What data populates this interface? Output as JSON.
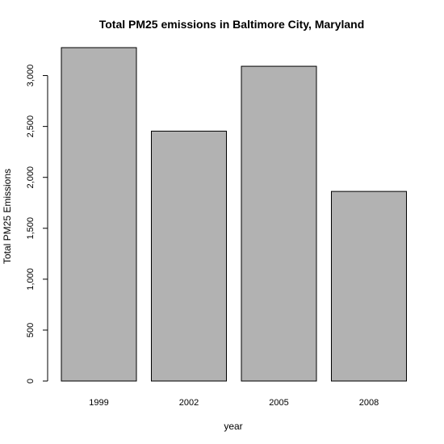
{
  "chart_data": {
    "type": "bar",
    "title": "Total PM25 emissions in Baltimore City, Maryland",
    "xlabel": "year",
    "ylabel": "Total PM25 Emissions",
    "categories": [
      "1999",
      "2002",
      "2005",
      "2008"
    ],
    "values": [
      3274,
      2454,
      3091,
      1862
    ],
    "ylim": [
      0,
      3300
    ],
    "yticks": [
      0,
      500,
      1000,
      1500,
      2000,
      2500,
      3000
    ],
    "ytick_labels": [
      "0",
      "500",
      "1,000",
      "1,500",
      "2,000",
      "2,500",
      "3,000"
    ],
    "bar_color": "#b2b2b2",
    "bar_edge_color": "#000000",
    "grid": false,
    "legend": "none"
  }
}
